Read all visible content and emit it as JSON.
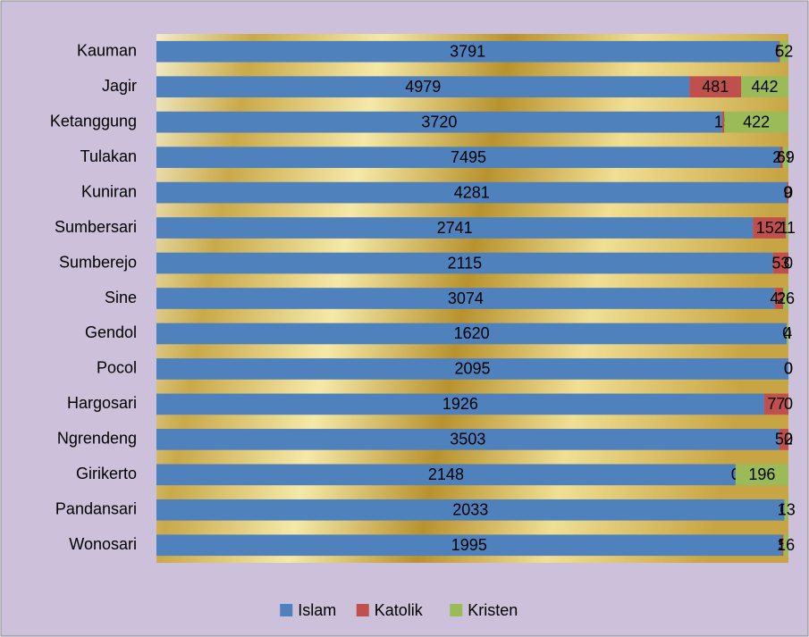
{
  "chart_data": {
    "type": "bar",
    "orientation": "horizontal",
    "stacking": "percent",
    "categories": [
      "Kauman",
      "Jagir",
      "Ketanggung",
      "Tulakan",
      "Kuniran",
      "Sumbersari",
      "Sumberejo",
      "Sine",
      "Gendol",
      "Pocol",
      "Hargosari",
      "Ngrendeng",
      "Girikerto",
      "Pandansari",
      "Wonosari"
    ],
    "series": [
      {
        "name": "Islam",
        "color": "#4f81bd",
        "values": [
          3791,
          4979,
          3720,
          7495,
          4281,
          2741,
          2115,
          3074,
          1620,
          2095,
          1926,
          3503,
          2148,
          2033,
          1995
        ]
      },
      {
        "name": "Katolik",
        "color": "#c0504d",
        "values": [
          6,
          481,
          15,
          28,
          9,
          152,
          53,
          42,
          0,
          0,
          77,
          52,
          0,
          0,
          5
        ]
      },
      {
        "name": "Kristen",
        "color": "#9bbb59",
        "values": [
          52,
          442,
          422,
          69,
          0,
          11,
          0,
          26,
          4,
          0,
          0,
          0,
          196,
          13,
          16
        ]
      }
    ],
    "legend": "bottom"
  }
}
